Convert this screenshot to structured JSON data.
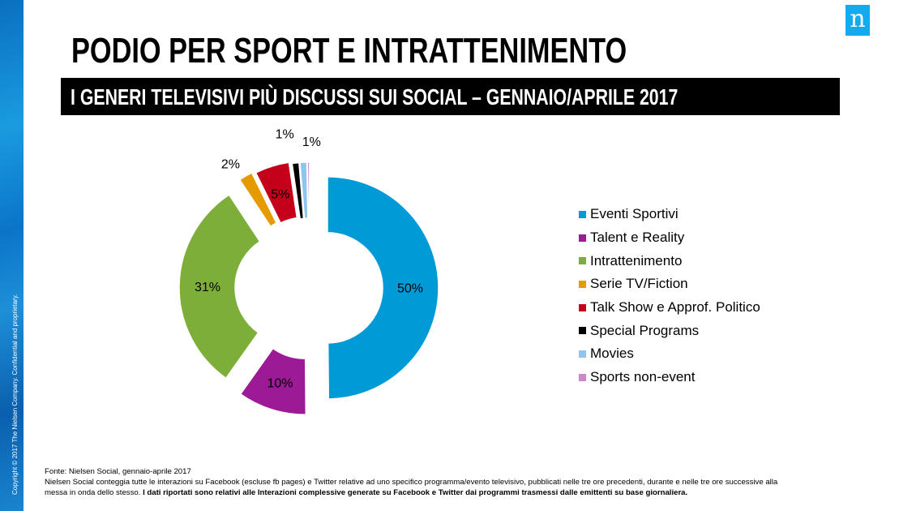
{
  "brand": {
    "copyright": "Copyright © 2017 The Nielsen Company. Confidential and proprietary.",
    "logo_letter": "n",
    "logo_color": "#14aaf0"
  },
  "title": "PODIO PER SPORT E INTRATTENIMENTO",
  "subtitle": "I GENERI TELEVISIVI PIÙ DISCUSSI SUI SOCIAL – GENNAIO/APRILE 2017",
  "chart_data": {
    "type": "pie",
    "variant": "exploded-donut",
    "categories": [
      "Eventi Sportivi",
      "Talent e Reality",
      "Intrattenimento",
      "Serie TV/Fiction",
      "Talk Show e Approf. Politico",
      "Special Programs",
      "Movies",
      "Sports non-event"
    ],
    "values": [
      50,
      10,
      31,
      2,
      5,
      1,
      1,
      0.3
    ],
    "labels": [
      "50%",
      "10%",
      "31%",
      "2%",
      "5%",
      "1%",
      "1%",
      ""
    ],
    "colors": [
      "#009bd6",
      "#9c1a96",
      "#7dae3a",
      "#e59b00",
      "#c5001a",
      "#000000",
      "#8cc6f0",
      "#cc88c8"
    ],
    "legend_position": "right"
  },
  "footer": {
    "source": "Fonte: Nielsen Social, gennaio-aprile 2017",
    "note1": "Nielsen Social conteggia tutte  le interazioni su Facebook (escluse fb pages)  e Twitter relative ad uno specifico programma/evento televisivo, pubblicati nelle tre ore precedenti, durante e nelle tre ore successive alla",
    "note2a": "messa in onda dello stesso.",
    "note2b": "I dati riportati sono relativi alle Interazioni complessive generate su Facebook e Twitter dai programmi trasmessi dalle emittenti  su base giornaliera."
  }
}
